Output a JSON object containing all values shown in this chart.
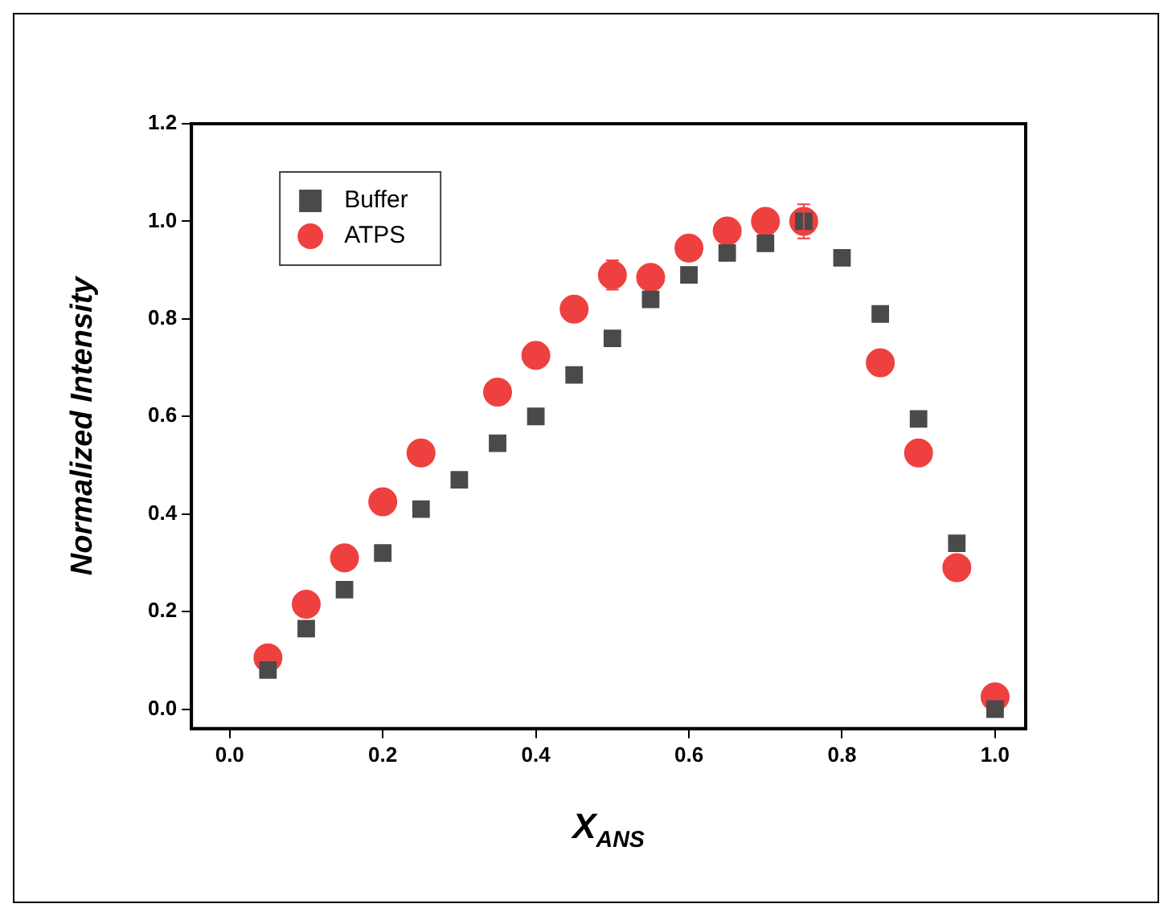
{
  "chart_data": {
    "type": "scatter",
    "xlabel": "X$_{ANS}$",
    "ylabel": "Normalized Intensity",
    "x": [
      0.05,
      0.1,
      0.15,
      0.2,
      0.25,
      0.3,
      0.35,
      0.4,
      0.45,
      0.5,
      0.55,
      0.6,
      0.65,
      0.7,
      0.75,
      0.8,
      0.85,
      0.9,
      0.95,
      1.0
    ],
    "series": [
      {
        "name": "Buffer",
        "color": "#4a4a4a",
        "marker": "square",
        "values": [
          0.08,
          0.165,
          0.245,
          0.32,
          0.41,
          0.47,
          0.545,
          0.6,
          0.685,
          0.76,
          0.84,
          0.89,
          0.935,
          0.955,
          1.0,
          0.925,
          0.81,
          0.595,
          0.34,
          0.0
        ]
      },
      {
        "name": "ATPS",
        "color": "#ef4040",
        "marker": "circle",
        "values": [
          0.105,
          0.215,
          0.31,
          0.425,
          0.525,
          null,
          0.65,
          0.725,
          0.82,
          0.89,
          0.885,
          0.945,
          0.98,
          1.0,
          1.0,
          null,
          0.71,
          0.525,
          0.29,
          0.025
        ],
        "errors": [
          null,
          null,
          null,
          null,
          null,
          null,
          null,
          null,
          null,
          0.03,
          null,
          null,
          null,
          null,
          0.035,
          null,
          null,
          null,
          null,
          null
        ]
      }
    ],
    "xlim": [
      -0.05,
      1.04
    ],
    "ylim": [
      -0.04,
      1.2
    ],
    "xticks": [
      {
        "value": 0,
        "label": "0.0"
      },
      0.2,
      0.4,
      0.6,
      0.8,
      {
        "value": 1,
        "label": "1.0"
      }
    ],
    "yticks": [
      {
        "value": 0,
        "label": "0.0"
      },
      0.2,
      0.4,
      0.6,
      0.8,
      {
        "value": 1,
        "label": "1.0"
      },
      {
        "value": 1.2,
        "label": "1.2"
      }
    ],
    "grid": false,
    "legend": "top left"
  }
}
